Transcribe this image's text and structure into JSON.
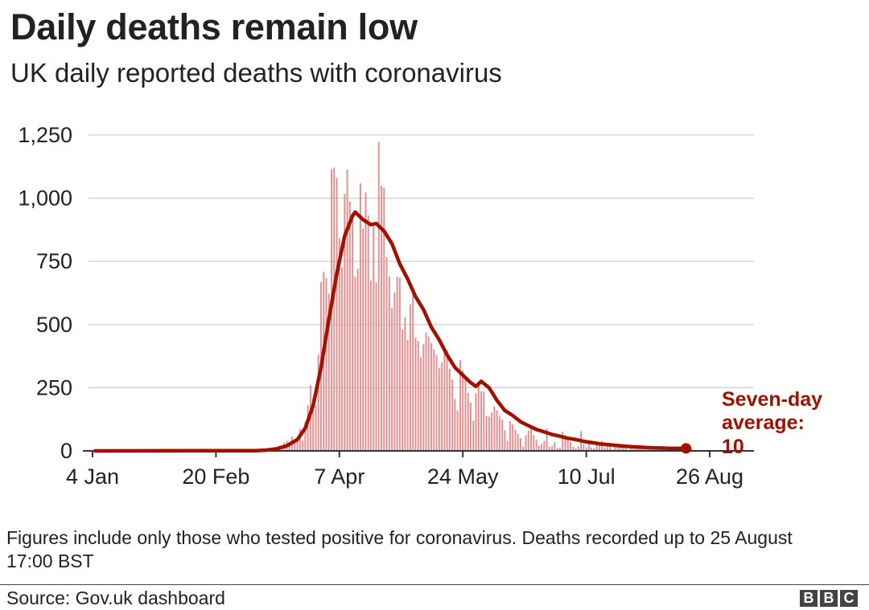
{
  "header": {
    "title": "Daily deaths remain low",
    "subtitle": "UK daily reported deaths with coronavirus"
  },
  "footer": {
    "note": "Figures include only those who tested positive for coronavirus. Deaths recorded up to 25 August 17:00 BST",
    "source": "Source: Gov.uk dashboard",
    "logo_letters": [
      "B",
      "B",
      "C"
    ]
  },
  "colors": {
    "bar": "#e88e8e",
    "line": "#a01100",
    "grid": "#cccccc",
    "text": "#222222"
  },
  "chart_data": {
    "type": "bar",
    "title": "Daily deaths remain low",
    "subtitle": "UK daily reported deaths with coronavirus",
    "x_axis": {
      "start": "2020-01-04",
      "end": "2020-08-26",
      "ticks": [
        {
          "date": "2020-01-04",
          "label": "4 Jan"
        },
        {
          "date": "2020-02-20",
          "label": "20 Feb"
        },
        {
          "date": "2020-04-07",
          "label": "7 Apr"
        },
        {
          "date": "2020-05-24",
          "label": "24 May"
        },
        {
          "date": "2020-07-10",
          "label": "10 Jul"
        },
        {
          "date": "2020-08-26",
          "label": "26 Aug"
        }
      ]
    },
    "y_axis": {
      "ylim": [
        0,
        1250
      ],
      "ticks": [
        0,
        250,
        500,
        750,
        1000,
        1250
      ],
      "tick_labels": [
        "0",
        "250",
        "500",
        "750",
        "1,000",
        "1,250"
      ]
    },
    "grid": true,
    "series": [
      {
        "kind": "bar",
        "data_start": "2020-03-06",
        "values": [
          1,
          0,
          2,
          1,
          2,
          2,
          1,
          10,
          14,
          20,
          16,
          33,
          40,
          33,
          56,
          48,
          54,
          87,
          41,
          115,
          181,
          260,
          209,
          180,
          381,
          668,
          708,
          684,
          623,
          1115,
          1121,
          1080,
          842,
          727,
          1017,
          1114,
          986,
          931,
          689,
          721,
          1059,
          880,
          1023,
          932,
          675,
          888,
          667,
          1222,
          1049,
          1042,
          766,
          690,
          565,
          626,
          689,
          685,
          480,
          529,
          439,
          580,
          635,
          448,
          435,
          370,
          422,
          468,
          453,
          427,
          402,
          380,
          328,
          350,
          415,
          397,
          325,
          282,
          205,
          160,
          359,
          319,
          285,
          230,
          191,
          119,
          228,
          268,
          236,
          236,
          138,
          136,
          151,
          176,
          160,
          137,
          124,
          81,
          40,
          118,
          105,
          84,
          66,
          50,
          17,
          62,
          81,
          100,
          62,
          44,
          21,
          28,
          40,
          88,
          16,
          20,
          34,
          11,
          12,
          76,
          55,
          48,
          35,
          16,
          9,
          18,
          78,
          28,
          15,
          39,
          14,
          11,
          38,
          21,
          39,
          14,
          23,
          17,
          6,
          15,
          14,
          27,
          21,
          18,
          2,
          12,
          11,
          12,
          20,
          8,
          13,
          5,
          10,
          10,
          12,
          18,
          17,
          10,
          3,
          5,
          9,
          12,
          9,
          2,
          4,
          2,
          16,
          12,
          13
        ]
      },
      {
        "kind": "line",
        "name": "Seven-day average",
        "points": [
          [
            1,
            0
          ],
          [
            62,
            1
          ],
          [
            66,
            3
          ],
          [
            70,
            8
          ],
          [
            74,
            20
          ],
          [
            78,
            45
          ],
          [
            81,
            90
          ],
          [
            84,
            180
          ],
          [
            87,
            330
          ],
          [
            90,
            520
          ],
          [
            93,
            700
          ],
          [
            96,
            850
          ],
          [
            99,
            930
          ],
          [
            100,
            945
          ],
          [
            103,
            915
          ],
          [
            106,
            895
          ],
          [
            108,
            900
          ],
          [
            111,
            870
          ],
          [
            114,
            820
          ],
          [
            117,
            740
          ],
          [
            120,
            680
          ],
          [
            123,
            610
          ],
          [
            126,
            560
          ],
          [
            129,
            490
          ],
          [
            132,
            440
          ],
          [
            135,
            380
          ],
          [
            138,
            330
          ],
          [
            141,
            300
          ],
          [
            144,
            270
          ],
          [
            146,
            255
          ],
          [
            148,
            275
          ],
          [
            151,
            250
          ],
          [
            154,
            200
          ],
          [
            157,
            160
          ],
          [
            160,
            140
          ],
          [
            163,
            115
          ],
          [
            166,
            100
          ],
          [
            169,
            85
          ],
          [
            172,
            75
          ],
          [
            175,
            65
          ],
          [
            178,
            58
          ],
          [
            181,
            50
          ],
          [
            184,
            45
          ],
          [
            187,
            38
          ],
          [
            190,
            33
          ],
          [
            193,
            28
          ],
          [
            196,
            25
          ],
          [
            199,
            22
          ],
          [
            202,
            19
          ],
          [
            205,
            17
          ],
          [
            208,
            15
          ],
          [
            211,
            13
          ],
          [
            214,
            12
          ],
          [
            217,
            11
          ],
          [
            220,
            10
          ],
          [
            223,
            10
          ],
          [
            226,
            10
          ]
        ]
      }
    ],
    "endpoint": {
      "day": 226,
      "value": 10
    },
    "annotation": {
      "lines": [
        "Seven-day",
        "average:",
        "10"
      ]
    }
  }
}
